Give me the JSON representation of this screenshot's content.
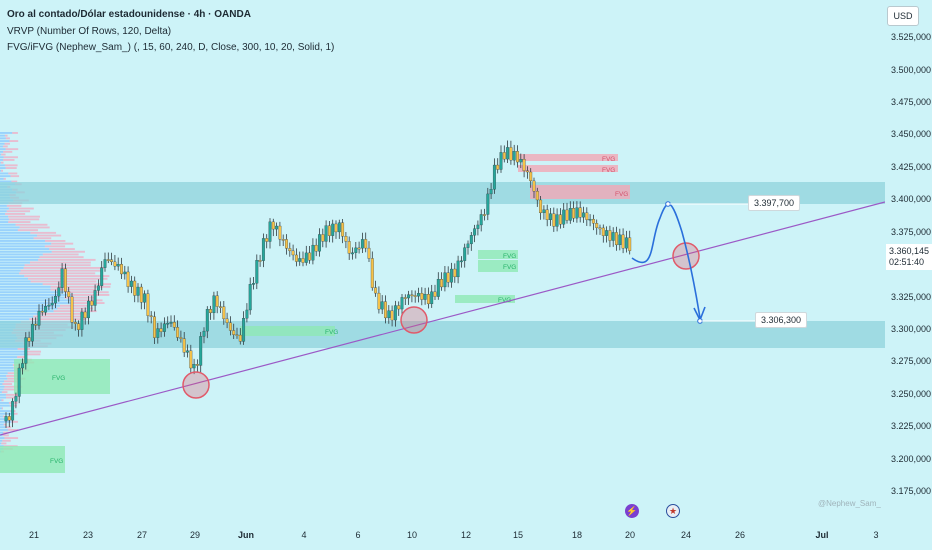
{
  "legend": {
    "title": "Oro al contado/Dólar estadounidense · 4h · OANDA",
    "indicator1": "VRVP (Number Of Rows, 120, Delta)",
    "indicator2": "FVG/iFVG (Nephew_Sam_) (, 15, 60, 240, D, Close, 300, 10, 20, Solid, 1)"
  },
  "currency_button": "USD",
  "price_axis": [
    "3.525,000",
    "3.500,000",
    "3.475,000",
    "3.450,000",
    "3.425,000",
    "3.400,000",
    "3.375,000",
    "3.325,000",
    "3.300,000",
    "3.275,000",
    "3.250,000",
    "3.225,000",
    "3.200,000",
    "3.175,000"
  ],
  "current_price": {
    "value": "3.360,145",
    "countdown": "02:51:40"
  },
  "time_axis": [
    {
      "label": "21",
      "bold": false
    },
    {
      "label": "23",
      "bold": false
    },
    {
      "label": "27",
      "bold": false
    },
    {
      "label": "29",
      "bold": false
    },
    {
      "label": "Jun",
      "bold": true
    },
    {
      "label": "4",
      "bold": false
    },
    {
      "label": "6",
      "bold": false
    },
    {
      "label": "10",
      "bold": false
    },
    {
      "label": "12",
      "bold": false
    },
    {
      "label": "15",
      "bold": false
    },
    {
      "label": "18",
      "bold": false
    },
    {
      "label": "20",
      "bold": false
    },
    {
      "label": "24",
      "bold": false
    },
    {
      "label": "26",
      "bold": false
    },
    {
      "label": "Jul",
      "bold": true
    },
    {
      "label": "3",
      "bold": false
    }
  ],
  "annotations": {
    "target_high": "3.397,700",
    "target_low": "3.306,300",
    "fvg_label": "FVG",
    "watermark": "@Nephew_Sam_"
  },
  "colors": {
    "background": "#cdf3f8",
    "bull_body": "#26a69a",
    "bear_body": "#f5c24a",
    "wick": "#2f3b40",
    "zone": "#8fd3dc",
    "fvg_bull": "#8ee8b4",
    "fvg_bear": "#f2a7b5",
    "trendline": "#9b59c6",
    "projection": "#2a6fdb",
    "marker_circle": "#e05a6a"
  },
  "events": [
    {
      "icon": "lightning-icon"
    },
    {
      "icon": "us-flag-icon"
    }
  ]
}
